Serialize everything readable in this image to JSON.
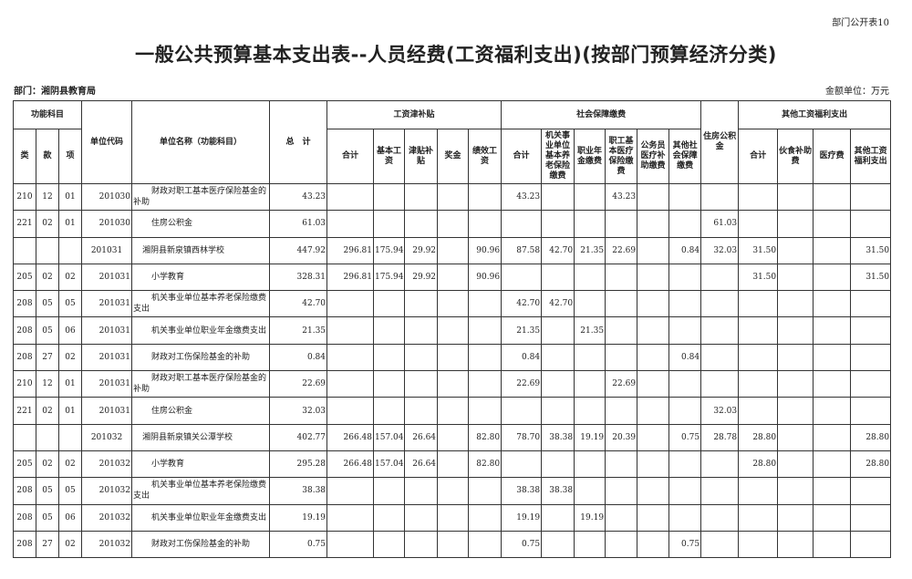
{
  "form_no": "部门公开表10",
  "title": "一般公共预算基本支出表--人员经费(工资福利支出)(按部门预算经济分类)",
  "department": "部门：湘阴县教育局",
  "unit": "金额单位：万元",
  "header": {
    "func_subject": "功能科目",
    "lei": "类",
    "kuan": "款",
    "xiang": "项",
    "unit_code": "单位代码",
    "unit_name": "单位名称（功能科目）",
    "total": "总　计",
    "salary_group": "工资津补贴",
    "salary_cols": [
      "合计",
      "基本工资",
      "津贴补贴",
      "奖金",
      "绩效工资"
    ],
    "social_group": "社会保障缴费",
    "social_cols": [
      "合计",
      "机关事业单位基本养老保险缴费",
      "职业年金缴费",
      "职工基本医疗保险缴费",
      "公务员医疗补助缴费",
      "其他社会保障缴费"
    ],
    "housing": "住房公积金",
    "other_group": "其他工资福利支出",
    "other_cols": [
      "合计",
      "伙食补助费",
      "医疗费",
      "其他工资福利支出"
    ]
  },
  "rows": [
    [
      "210",
      "12",
      "01",
      "201030",
      "财政对职工基本医疗保险基金的补助",
      "43.23",
      "",
      "",
      "",
      "",
      "",
      "43.23",
      "",
      "",
      "43.23",
      "",
      "",
      "",
      "",
      "",
      "",
      ""
    ],
    [
      "221",
      "02",
      "01",
      "201030",
      "住房公积金",
      "61.03",
      "",
      "",
      "",
      "",
      "",
      "",
      "",
      "",
      "",
      "",
      "",
      "61.03",
      "",
      "",
      "",
      ""
    ],
    [
      "",
      "",
      "",
      "201031",
      "湘阴县新泉镇西林学校",
      "447.92",
      "296.81",
      "175.94",
      "29.92",
      "",
      "90.96",
      "87.58",
      "42.70",
      "21.35",
      "22.69",
      "",
      "0.84",
      "32.03",
      "31.50",
      "",
      "",
      "31.50"
    ],
    [
      "205",
      "02",
      "02",
      "201031",
      "小学教育",
      "328.31",
      "296.81",
      "175.94",
      "29.92",
      "",
      "90.96",
      "",
      "",
      "",
      "",
      "",
      "",
      "",
      "31.50",
      "",
      "",
      "31.50"
    ],
    [
      "208",
      "05",
      "05",
      "201031",
      "机关事业单位基本养老保险缴费支出",
      "42.70",
      "",
      "",
      "",
      "",
      "",
      "42.70",
      "42.70",
      "",
      "",
      "",
      "",
      "",
      "",
      "",
      "",
      ""
    ],
    [
      "208",
      "05",
      "06",
      "201031",
      "机关事业单位职业年金缴费支出",
      "21.35",
      "",
      "",
      "",
      "",
      "",
      "21.35",
      "",
      "21.35",
      "",
      "",
      "",
      "",
      "",
      "",
      "",
      ""
    ],
    [
      "208",
      "27",
      "02",
      "201031",
      "财政对工伤保险基金的补助",
      "0.84",
      "",
      "",
      "",
      "",
      "",
      "0.84",
      "",
      "",
      "",
      "",
      "0.84",
      "",
      "",
      "",
      "",
      ""
    ],
    [
      "210",
      "12",
      "01",
      "201031",
      "财政对职工基本医疗保险基金的补助",
      "22.69",
      "",
      "",
      "",
      "",
      "",
      "22.69",
      "",
      "",
      "22.69",
      "",
      "",
      "",
      "",
      "",
      "",
      ""
    ],
    [
      "221",
      "02",
      "01",
      "201031",
      "住房公积金",
      "32.03",
      "",
      "",
      "",
      "",
      "",
      "",
      "",
      "",
      "",
      "",
      "",
      "32.03",
      "",
      "",
      "",
      ""
    ],
    [
      "",
      "",
      "",
      "201032",
      "湘阴县新泉镇关公潭学校",
      "402.77",
      "266.48",
      "157.04",
      "26.64",
      "",
      "82.80",
      "78.70",
      "38.38",
      "19.19",
      "20.39",
      "",
      "0.75",
      "28.78",
      "28.80",
      "",
      "",
      "28.80"
    ],
    [
      "205",
      "02",
      "02",
      "201032",
      "小学教育",
      "295.28",
      "266.48",
      "157.04",
      "26.64",
      "",
      "82.80",
      "",
      "",
      "",
      "",
      "",
      "",
      "",
      "28.80",
      "",
      "",
      "28.80"
    ],
    [
      "208",
      "05",
      "05",
      "201032",
      "机关事业单位基本养老保险缴费支出",
      "38.38",
      "",
      "",
      "",
      "",
      "",
      "38.38",
      "38.38",
      "",
      "",
      "",
      "",
      "",
      "",
      "",
      "",
      ""
    ],
    [
      "208",
      "05",
      "06",
      "201032",
      "机关事业单位职业年金缴费支出",
      "19.19",
      "",
      "",
      "",
      "",
      "",
      "19.19",
      "",
      "19.19",
      "",
      "",
      "",
      "",
      "",
      "",
      "",
      ""
    ],
    [
      "208",
      "27",
      "02",
      "201032",
      "财政对工伤保险基金的补助",
      "0.75",
      "",
      "",
      "",
      "",
      "",
      "0.75",
      "",
      "",
      "",
      "",
      "0.75",
      "",
      "",
      "",
      "",
      ""
    ]
  ]
}
